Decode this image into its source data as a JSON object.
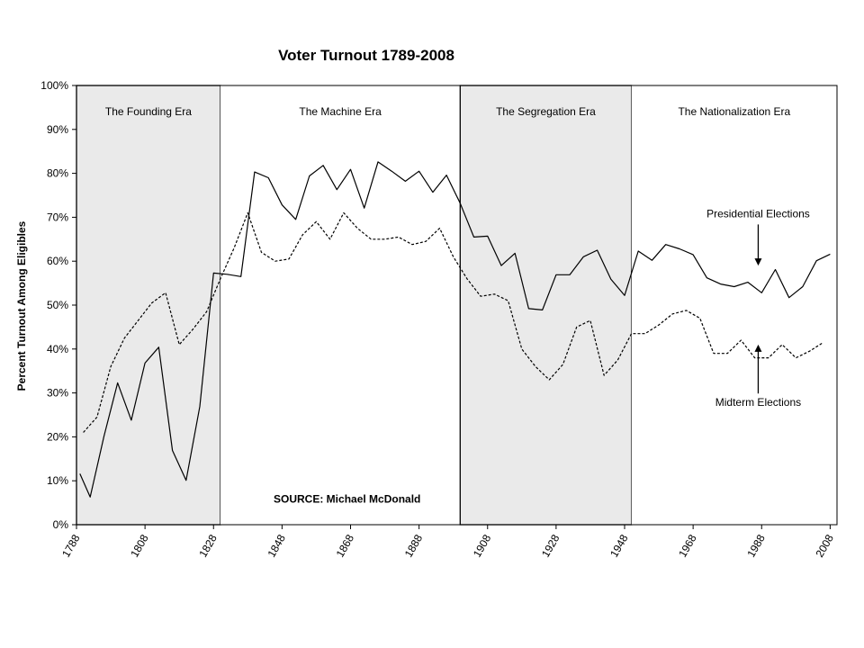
{
  "chart_data": {
    "type": "line",
    "title": "Voter Turnout 1789-2008",
    "xlabel": "",
    "ylabel": "Percent Turnout Among Eligibles",
    "xlim": [
      1788,
      2010
    ],
    "ylim": [
      0,
      100
    ],
    "x_ticks": [
      "1788",
      "1808",
      "1828",
      "1848",
      "1868",
      "1888",
      "1908",
      "1928",
      "1948",
      "1968",
      "1988",
      "2008"
    ],
    "y_ticks": [
      "0%",
      "10%",
      "20%",
      "30%",
      "40%",
      "50%",
      "60%",
      "70%",
      "80%",
      "90%",
      "100%"
    ],
    "eras": [
      {
        "label": "The Founding Era",
        "start": 1788,
        "end": 1830,
        "shaded": true
      },
      {
        "label": "The Machine Era",
        "start": 1830,
        "end": 1900,
        "shaded": false
      },
      {
        "label": "The Segregation Era",
        "start": 1900,
        "end": 1950,
        "shaded": true
      },
      {
        "label": "The Nationalization Era",
        "start": 1950,
        "end": 2010,
        "shaded": false
      }
    ],
    "series": [
      {
        "name": "Presidential Elections",
        "style": "solid",
        "x": [
          1789,
          1792,
          1796,
          1800,
          1804,
          1808,
          1812,
          1816,
          1820,
          1824,
          1828,
          1832,
          1836,
          1840,
          1844,
          1848,
          1852,
          1856,
          1860,
          1864,
          1868,
          1872,
          1876,
          1880,
          1884,
          1888,
          1892,
          1896,
          1900,
          1904,
          1908,
          1912,
          1916,
          1920,
          1924,
          1928,
          1932,
          1936,
          1940,
          1944,
          1948,
          1952,
          1956,
          1960,
          1964,
          1968,
          1972,
          1976,
          1980,
          1984,
          1988,
          1992,
          1996,
          2000,
          2004,
          2008
        ],
        "values": [
          11.6,
          6.3,
          20.1,
          32.3,
          23.8,
          36.8,
          40.4,
          16.9,
          10.1,
          26.9,
          57.3,
          57.0,
          56.5,
          80.3,
          79.0,
          72.8,
          69.5,
          79.4,
          81.8,
          76.3,
          80.9,
          72.1,
          82.6,
          80.5,
          78.2,
          80.5,
          75.7,
          79.6,
          73.2,
          65.5,
          65.7,
          59.0,
          61.8,
          49.2,
          48.9,
          56.9,
          56.9,
          61.0,
          62.5,
          55.9,
          52.2,
          62.3,
          60.2,
          63.8,
          62.8,
          61.5,
          56.2,
          54.8,
          54.2,
          55.2,
          52.8,
          58.1,
          51.7,
          54.2,
          60.1,
          61.6
        ]
      },
      {
        "name": "Midterm Elections",
        "style": "dashed",
        "x": [
          1790,
          1794,
          1798,
          1802,
          1806,
          1810,
          1814,
          1818,
          1822,
          1826,
          1830,
          1834,
          1838,
          1842,
          1846,
          1850,
          1854,
          1858,
          1862,
          1866,
          1870,
          1874,
          1878,
          1882,
          1886,
          1890,
          1894,
          1898,
          1902,
          1906,
          1910,
          1914,
          1918,
          1922,
          1926,
          1930,
          1934,
          1938,
          1942,
          1946,
          1950,
          1954,
          1958,
          1962,
          1966,
          1970,
          1974,
          1978,
          1982,
          1986,
          1990,
          1994,
          1998,
          2002,
          2006
        ],
        "values": [
          21,
          24.5,
          36,
          42.5,
          46.5,
          50.5,
          52.8,
          41,
          44.5,
          48.5,
          56,
          63,
          71,
          62,
          60,
          60.5,
          66,
          69,
          65,
          71,
          67.5,
          65,
          65,
          65.5,
          63.8,
          64.5,
          67.5,
          61,
          56,
          52,
          52.5,
          51,
          40,
          36,
          33,
          36.5,
          45,
          46.5,
          34,
          37.5,
          43.5,
          43.5,
          45.5,
          48,
          48.8,
          47,
          39,
          39,
          42,
          38,
          38,
          41,
          38,
          39.5,
          41.5
        ]
      }
    ],
    "annotations": [
      {
        "text": "Presidential Elections",
        "x": 1987,
        "y": 70,
        "arrow_to": [
          1987,
          59
        ]
      },
      {
        "text": "Midterm Elections",
        "x": 1987,
        "y": 27,
        "arrow_to": [
          1987,
          41
        ]
      },
      {
        "text": "SOURCE: Michael McDonald",
        "x": 1867,
        "y": 5
      }
    ],
    "grid": false,
    "legend": "none"
  }
}
